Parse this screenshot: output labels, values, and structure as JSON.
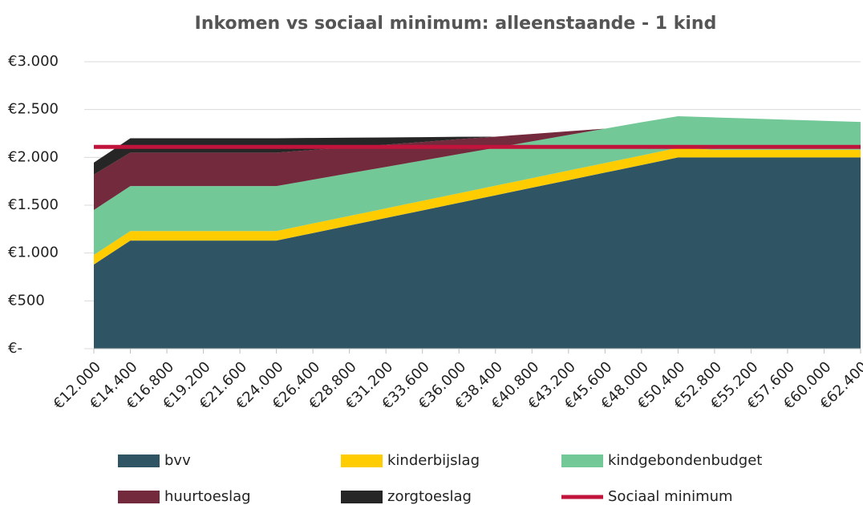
{
  "chart_data": {
    "type": "stacked-area",
    "title": "Inkomen vs sociaal minimum: alleenstaande - 1 kind",
    "categories": [
      "€12.000",
      "€14.400",
      "€16.800",
      "€19.200",
      "€21.600",
      "€24.000",
      "€26.400",
      "€28.800",
      "€31.200",
      "€33.600",
      "€36.000",
      "€38.400",
      "€40.800",
      "€43.200",
      "€45.600",
      "€48.000",
      "€50.400",
      "€52.800",
      "€55.200",
      "€57.600",
      "€60.000",
      "€62.400"
    ],
    "series": [
      {
        "name": "bvv",
        "color": "#2f5565",
        "values": [
          880,
          1130,
          1130,
          1130,
          1130,
          1130,
          1209,
          1288,
          1367,
          1446,
          1525,
          1604,
          1683,
          1762,
          1841,
          1920,
          2000,
          2000,
          2000,
          2000,
          2000,
          2000
        ]
      },
      {
        "name": "kinderbijslag",
        "color": "#ffcc00",
        "values": [
          100,
          100,
          100,
          100,
          100,
          100,
          100,
          100,
          100,
          100,
          100,
          100,
          100,
          100,
          100,
          100,
          100,
          80,
          80,
          80,
          80,
          80
        ]
      },
      {
        "name": "kindgebondenbudget",
        "color": "#72c997",
        "values": [
          470,
          470,
          470,
          470,
          470,
          470,
          458,
          446,
          433,
          421,
          409,
          396,
          384,
          372,
          359,
          347,
          330,
          338,
          326,
          314,
          302,
          290
        ]
      },
      {
        "name": "huurtoeslag",
        "color": "#722a3c",
        "values": [
          370,
          350,
          350,
          350,
          350,
          350,
          311,
          272,
          233,
          194,
          156,
          117,
          78,
          39,
          0,
          0,
          0,
          0,
          0,
          0,
          0,
          0
        ]
      },
      {
        "name": "zorgtoeslag",
        "color": "#262626",
        "values": [
          125,
          150,
          150,
          150,
          150,
          150,
          125,
          100,
          75,
          50,
          25,
          0,
          0,
          0,
          0,
          0,
          0,
          0,
          0,
          0,
          0,
          0
        ]
      },
      {
        "name": "Sociaal minimum",
        "color": "#c0143c",
        "type": "line",
        "values": [
          2110,
          2110,
          2110,
          2110,
          2110,
          2110,
          2110,
          2110,
          2110,
          2110,
          2110,
          2110,
          2110,
          2110,
          2110,
          2110,
          2110,
          2110,
          2110,
          2110,
          2110,
          2110
        ]
      }
    ],
    "ylim": [
      0,
      3000
    ],
    "yticks": [
      {
        "value": 0,
        "label": "€-"
      },
      {
        "value": 500,
        "label": "€500"
      },
      {
        "value": 1000,
        "label": "€1.000"
      },
      {
        "value": 1500,
        "label": "€1.500"
      },
      {
        "value": 2000,
        "label": "€2.000"
      },
      {
        "value": 2500,
        "label": "€2.500"
      },
      {
        "value": 3000,
        "label": "€3.000"
      }
    ],
    "grid": true
  }
}
